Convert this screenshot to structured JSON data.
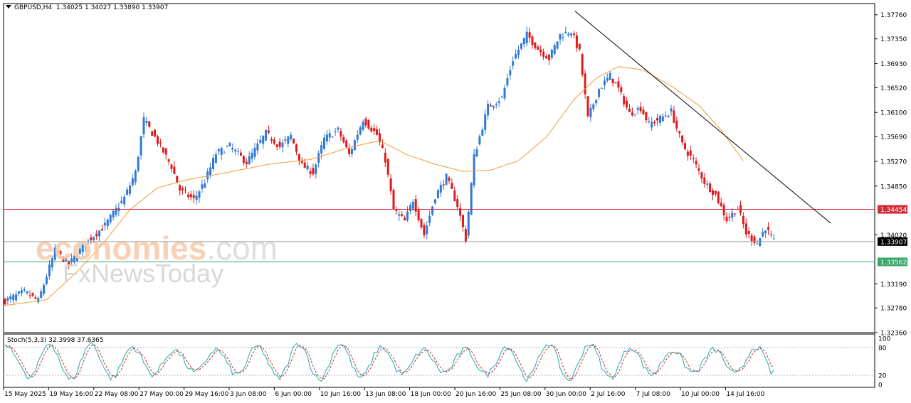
{
  "header": {
    "symbol": "GBPUSD,H4",
    "ohlc": "1.34025 1.34027 1.33890 1.33907"
  },
  "watermark": {
    "brand": "economies",
    "brand_suffix": ".com",
    "sub": "FxNewsToday"
  },
  "stochastic": {
    "label": "Stoch(5,3,3) 32.3998 37.6365",
    "levels": [
      "100",
      "80",
      "20",
      "0"
    ]
  },
  "colors": {
    "bull": "#2f7ad6",
    "bear": "#e0191b",
    "ma": "#f39c3a",
    "trend": "#000000",
    "resistance": "#d22b38",
    "support": "#3aa66a",
    "current": "#9a9a9a",
    "stoch_main": "#21a9b4",
    "stoch_signal": "#d62728"
  },
  "chart_data": {
    "type": "candlestick",
    "title": "GBPUSD,H4",
    "ylim": [
      1.3236,
      1.3795
    ],
    "y_ticks": [
      "1.37760",
      "1.37350",
      "1.36930",
      "1.36520",
      "1.36100",
      "1.35690",
      "1.35270",
      "1.34850",
      "1.34020",
      "1.33190",
      "1.32780",
      "1.32360"
    ],
    "x_ticks": [
      "15 May 2025",
      "19 May 16:00",
      "22 May 08:00",
      "27 May 00:00",
      "29 May 16:00",
      "3 Jun 08:00",
      "6 Jun 00:00",
      "10 Jun 16:00",
      "13 Jun 08:00",
      "18 Jun 00:00",
      "20 Jun 16:00",
      "25 Jun 08:00",
      "30 Jun 00:00",
      "2 Jul 16:00",
      "7 Jul 08:00",
      "10 Jul 00:00",
      "14 Jul 16:00"
    ],
    "price_path": [
      [
        0,
        1.3288
      ],
      [
        8,
        1.3305
      ],
      [
        13,
        1.329
      ],
      [
        19,
        1.3375
      ],
      [
        24,
        1.3352
      ],
      [
        30,
        1.3388
      ],
      [
        37,
        1.3418
      ],
      [
        44,
        1.3465
      ],
      [
        48,
        1.3508
      ],
      [
        51,
        1.3598
      ],
      [
        56,
        1.356
      ],
      [
        61,
        1.3518
      ],
      [
        64,
        1.3478
      ],
      [
        69,
        1.3462
      ],
      [
        73,
        1.3493
      ],
      [
        77,
        1.354
      ],
      [
        82,
        1.3553
      ],
      [
        88,
        1.3525
      ],
      [
        95,
        1.3575
      ],
      [
        100,
        1.3552
      ],
      [
        104,
        1.357
      ],
      [
        108,
        1.352
      ],
      [
        112,
        1.3508
      ],
      [
        116,
        1.3565
      ],
      [
        121,
        1.358
      ],
      [
        125,
        1.3538
      ],
      [
        130,
        1.3598
      ],
      [
        135,
        1.3572
      ],
      [
        138,
        1.353
      ],
      [
        141,
        1.3445
      ],
      [
        145,
        1.3425
      ],
      [
        148,
        1.3462
      ],
      [
        152,
        1.3402
      ],
      [
        156,
        1.3468
      ],
      [
        160,
        1.35
      ],
      [
        164,
        1.3452
      ],
      [
        167,
        1.3395
      ],
      [
        170,
        1.3535
      ],
      [
        175,
        1.362
      ],
      [
        180,
        1.3635
      ],
      [
        184,
        1.37
      ],
      [
        189,
        1.3742
      ],
      [
        193,
        1.3718
      ],
      [
        197,
        1.3702
      ],
      [
        201,
        1.3742
      ],
      [
        205,
        1.3748
      ],
      [
        208,
        1.3712
      ],
      [
        211,
        1.36
      ],
      [
        215,
        1.365
      ],
      [
        219,
        1.3672
      ],
      [
        222,
        1.365
      ],
      [
        226,
        1.3608
      ],
      [
        230,
        1.3618
      ],
      [
        233,
        1.359
      ],
      [
        237,
        1.36
      ],
      [
        241,
        1.3612
      ],
      [
        245,
        1.3555
      ],
      [
        249,
        1.3528
      ],
      [
        253,
        1.3492
      ],
      [
        257,
        1.347
      ],
      [
        261,
        1.3428
      ],
      [
        265,
        1.3448
      ],
      [
        268,
        1.3405
      ],
      [
        272,
        1.3388
      ],
      [
        275,
        1.3415
      ],
      [
        278,
        1.339
      ]
    ],
    "ma_path": [
      [
        0,
        1.3282
      ],
      [
        15,
        1.3292
      ],
      [
        25,
        1.3335
      ],
      [
        35,
        1.3385
      ],
      [
        45,
        1.3445
      ],
      [
        55,
        1.3482
      ],
      [
        65,
        1.3495
      ],
      [
        80,
        1.3508
      ],
      [
        95,
        1.3522
      ],
      [
        110,
        1.353
      ],
      [
        125,
        1.3552
      ],
      [
        135,
        1.3562
      ],
      [
        145,
        1.3538
      ],
      [
        155,
        1.3522
      ],
      [
        165,
        1.351
      ],
      [
        175,
        1.3512
      ],
      [
        185,
        1.3528
      ],
      [
        195,
        1.3568
      ],
      [
        205,
        1.3632
      ],
      [
        213,
        1.3668
      ],
      [
        221,
        1.3688
      ],
      [
        230,
        1.3682
      ],
      [
        240,
        1.3655
      ],
      [
        250,
        1.3622
      ],
      [
        258,
        1.358
      ],
      [
        266,
        1.3528
      ]
    ],
    "levels": {
      "resistance": 1.34454,
      "current": 1.33907,
      "support": 1.33562
    },
    "trendline": {
      "start_price": 1.3782,
      "end_price": 1.3422
    },
    "stochastic": {
      "k_last": 32.3998,
      "d_last": 37.6365,
      "ylim": [
        0,
        100
      ]
    }
  }
}
